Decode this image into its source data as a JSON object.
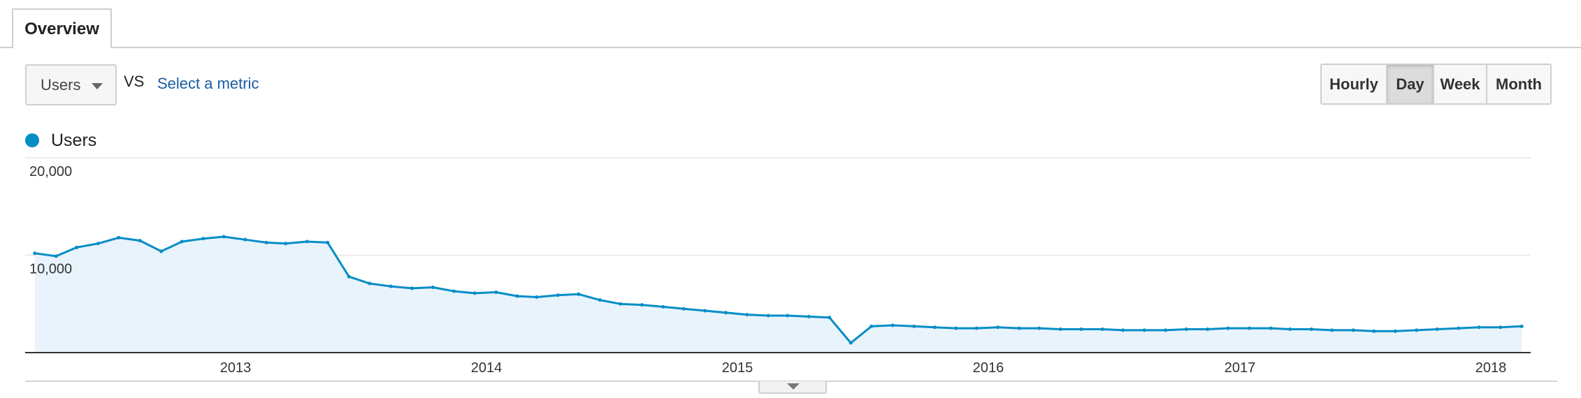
{
  "tabs": {
    "overview": "Overview"
  },
  "controls": {
    "metric": "Users",
    "vs": "VS",
    "select_metric": "Select a metric",
    "granularity": [
      "Hourly",
      "Day",
      "Week",
      "Month"
    ],
    "active_granularity": "Day"
  },
  "colors": {
    "series": "#058dc7",
    "fill": "#e8f3fb",
    "link": "#1a5da0"
  },
  "chart_data": {
    "type": "area",
    "title": "",
    "xlabel": "",
    "ylabel": "",
    "legend": "top-left",
    "grid": true,
    "series": [
      {
        "name": "Users",
        "x": [
          "2012-03",
          "2012-04",
          "2012-05",
          "2012-06",
          "2012-07",
          "2012-08",
          "2012-09",
          "2012-10",
          "2012-11",
          "2012-12",
          "2013-01",
          "2013-02",
          "2013-03",
          "2013-04",
          "2013-05",
          "2013-06",
          "2013-07",
          "2013-08",
          "2013-09",
          "2013-10",
          "2013-11",
          "2013-12",
          "2014-01",
          "2014-02",
          "2014-03",
          "2014-04",
          "2014-05",
          "2014-06",
          "2014-07",
          "2014-08",
          "2014-09",
          "2014-10",
          "2014-11",
          "2014-12",
          "2015-01",
          "2015-02",
          "2015-03",
          "2015-04",
          "2015-05",
          "2015-06",
          "2015-07",
          "2015-08",
          "2015-09",
          "2015-10",
          "2015-11",
          "2015-12",
          "2016-01",
          "2016-02",
          "2016-03",
          "2016-04",
          "2016-05",
          "2016-06",
          "2016-07",
          "2016-08",
          "2016-09",
          "2016-10",
          "2016-11",
          "2016-12",
          "2017-01",
          "2017-02",
          "2017-03",
          "2017-04",
          "2017-05",
          "2017-06",
          "2017-07",
          "2017-08",
          "2017-09",
          "2017-10",
          "2017-11",
          "2017-12",
          "2018-01",
          "2018-02"
        ],
        "values": [
          10200,
          9900,
          10800,
          11200,
          11800,
          11500,
          10400,
          11400,
          11700,
          11900,
          11600,
          11300,
          11200,
          11400,
          11300,
          7800,
          7100,
          6800,
          6600,
          6700,
          6300,
          6100,
          6200,
          5800,
          5700,
          5900,
          6000,
          5400,
          5000,
          4900,
          4700,
          4500,
          4300,
          4100,
          3900,
          3800,
          3800,
          3700,
          3600,
          1000,
          2700,
          2800,
          2700,
          2600,
          2500,
          2500,
          2600,
          2500,
          2500,
          2400,
          2400,
          2400,
          2300,
          2300,
          2300,
          2400,
          2400,
          2500,
          2500,
          2500,
          2400,
          2400,
          2300,
          2300,
          2200,
          2200,
          2300,
          2400,
          2500,
          2600,
          2600,
          2700
        ]
      }
    ],
    "y_ticks": [
      "20,000",
      "10,000"
    ],
    "x_ticks": [
      "2013",
      "2014",
      "2015",
      "2016",
      "2017",
      "2018"
    ],
    "ylim": [
      0,
      20000
    ],
    "xlim": [
      "2012-03-01",
      "2018-02-28"
    ]
  }
}
